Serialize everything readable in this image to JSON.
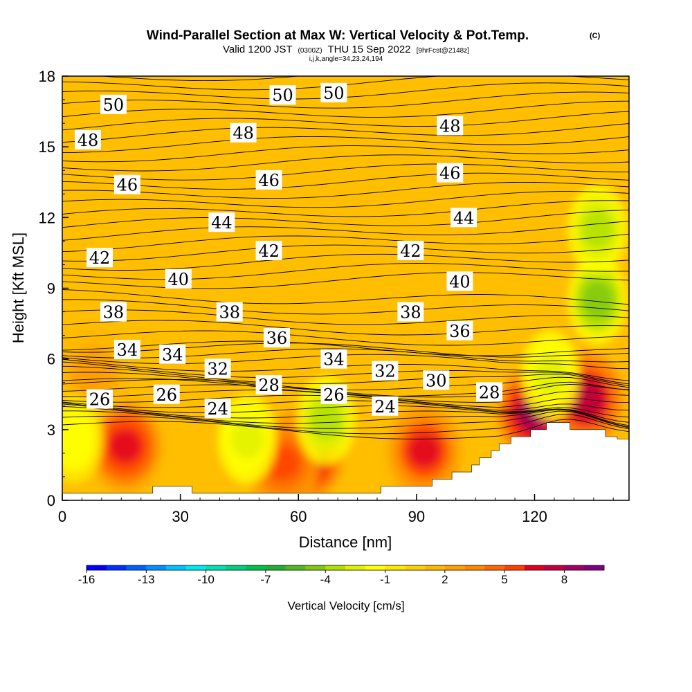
{
  "chart_data": {
    "type": "heatmap",
    "title": "Wind-Parallel Section at Max W: Vertical Velocity & Pot.Temp.",
    "title_mark": "(C)",
    "subtitle_main": "Valid 1200 JST",
    "subtitle_utc": "(0300Z)",
    "subtitle_date": "THU 15 Sep 2022",
    "subtitle_fcst": "[9hrFcst@2148z]",
    "subtitle2": "i,j,k,angle=34,23,24,194",
    "xlabel": "Distance [nm]",
    "ylabel": "Height [Kft MSL]",
    "xlim": [
      0,
      144
    ],
    "ylim": [
      0,
      18
    ],
    "xticks": [
      0,
      30,
      60,
      90,
      120
    ],
    "yticks": [
      0,
      3,
      6,
      9,
      12,
      15,
      18
    ],
    "colorbar": {
      "label": "Vertical Velocity [cm/s]",
      "range": [
        -16,
        10
      ],
      "tick_labels": [
        "-16",
        "-13",
        "-10",
        "-7",
        "-4",
        "-1",
        "2",
        "5",
        "8"
      ],
      "tick_values": [
        -16,
        -13,
        -10,
        -7,
        -4,
        -1,
        2,
        5,
        8
      ],
      "colors": [
        "#0000ff",
        "#0030ff",
        "#0060ff",
        "#0090ff",
        "#00c0ff",
        "#00e8f0",
        "#00e0b0",
        "#00d080",
        "#00c050",
        "#20b030",
        "#50b820",
        "#80c810",
        "#b0e000",
        "#e0f000",
        "#ffff00",
        "#ffe800",
        "#ffd000",
        "#ffb800",
        "#ffa000",
        "#ff8800",
        "#ff6800",
        "#ff4000",
        "#e00020",
        "#c00040",
        "#a00060",
        "#800080"
      ]
    },
    "isentrope_labels": [
      {
        "value": "50",
        "x": 13,
        "y": 16.8
      },
      {
        "value": "50",
        "x": 56,
        "y": 17.2
      },
      {
        "value": "50",
        "x": 69,
        "y": 17.3
      },
      {
        "value": "48",
        "x": 6.5,
        "y": 15.3
      },
      {
        "value": "48",
        "x": 46,
        "y": 15.6
      },
      {
        "value": "48",
        "x": 98.5,
        "y": 15.9
      },
      {
        "value": "46",
        "x": 16.5,
        "y": 13.4
      },
      {
        "value": "46",
        "x": 52.5,
        "y": 13.6
      },
      {
        "value": "46",
        "x": 98.5,
        "y": 13.9
      },
      {
        "value": "44",
        "x": 40.5,
        "y": 11.8
      },
      {
        "value": "44",
        "x": 102,
        "y": 12.0
      },
      {
        "value": "42",
        "x": 9.5,
        "y": 10.3
      },
      {
        "value": "42",
        "x": 52.5,
        "y": 10.6
      },
      {
        "value": "42",
        "x": 88.5,
        "y": 10.6
      },
      {
        "value": "40",
        "x": 29.5,
        "y": 9.4
      },
      {
        "value": "40",
        "x": 101,
        "y": 9.3
      },
      {
        "value": "38",
        "x": 13,
        "y": 8.0
      },
      {
        "value": "38",
        "x": 42.5,
        "y": 8.0
      },
      {
        "value": "38",
        "x": 88.5,
        "y": 8.0
      },
      {
        "value": "36",
        "x": 54.5,
        "y": 6.9
      },
      {
        "value": "36",
        "x": 101,
        "y": 7.2
      },
      {
        "value": "34",
        "x": 16.5,
        "y": 6.4
      },
      {
        "value": "34",
        "x": 28,
        "y": 6.2
      },
      {
        "value": "34",
        "x": 69,
        "y": 6.0
      },
      {
        "value": "32",
        "x": 39.5,
        "y": 5.6
      },
      {
        "value": "32",
        "x": 82,
        "y": 5.5
      },
      {
        "value": "30",
        "x": 95,
        "y": 5.1
      },
      {
        "value": "28",
        "x": 52.5,
        "y": 4.9
      },
      {
        "value": "28",
        "x": 108.5,
        "y": 4.6
      },
      {
        "value": "26",
        "x": 9.5,
        "y": 4.3
      },
      {
        "value": "26",
        "x": 26.5,
        "y": 4.5
      },
      {
        "value": "26",
        "x": 69,
        "y": 4.5
      },
      {
        "value": "24",
        "x": 39.5,
        "y": 3.9
      },
      {
        "value": "24",
        "x": 82,
        "y": 4.0
      }
    ],
    "updraft_cores": [
      {
        "x": 16,
        "y": 2.3,
        "w": 7
      },
      {
        "x": 62,
        "y": 2.0,
        "w": 9
      },
      {
        "x": 56,
        "y": 1.6,
        "w": 6
      },
      {
        "x": 92,
        "y": 2.1,
        "w": 6.5
      },
      {
        "x": 120,
        "y": 3.7,
        "w": 9
      },
      {
        "x": 133,
        "y": 4.3,
        "w": 8
      },
      {
        "x": 8,
        "y": 5.4,
        "w": 3
      }
    ],
    "downdraft_cores": [
      {
        "x": 67,
        "y": 3.4,
        "w": -4
      },
      {
        "x": 47,
        "y": 2.6,
        "w": -3
      },
      {
        "x": 136,
        "y": 8.5,
        "w": -5
      },
      {
        "x": 136,
        "y": 11.5,
        "w": -3.5
      },
      {
        "x": 124,
        "y": 5.3,
        "w": -3
      },
      {
        "x": 3,
        "y": 2.6,
        "w": -2
      }
    ],
    "terrain": [
      [
        0,
        0.3
      ],
      [
        23,
        0.3
      ],
      [
        23,
        0.6
      ],
      [
        33,
        0.6
      ],
      [
        33,
        0.3
      ],
      [
        81,
        0.3
      ],
      [
        81,
        0.6
      ],
      [
        94,
        0.6
      ],
      [
        94,
        0.9
      ],
      [
        99,
        0.9
      ],
      [
        99,
        1.2
      ],
      [
        104,
        1.2
      ],
      [
        104,
        1.5
      ],
      [
        106,
        1.5
      ],
      [
        106,
        1.8
      ],
      [
        109,
        1.8
      ],
      [
        109,
        2.1
      ],
      [
        111,
        2.1
      ],
      [
        111,
        2.4
      ],
      [
        114,
        2.4
      ],
      [
        114,
        2.7
      ],
      [
        119,
        2.7
      ],
      [
        119,
        3.0
      ],
      [
        123,
        3.0
      ],
      [
        123,
        3.3
      ],
      [
        129,
        3.3
      ],
      [
        129,
        3.0
      ],
      [
        138,
        3.0
      ],
      [
        138,
        2.7
      ],
      [
        141,
        2.7
      ],
      [
        141,
        2.6
      ],
      [
        144,
        2.6
      ]
    ]
  }
}
